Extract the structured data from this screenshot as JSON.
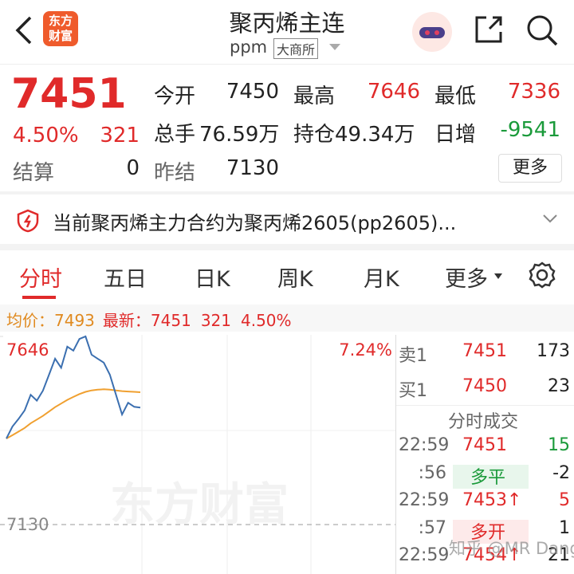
{
  "header": {
    "logo": [
      "东方",
      "财富"
    ],
    "title": "聚丙烯主连",
    "code": "ppm",
    "exchange": "大商所"
  },
  "quote": {
    "price": "7451",
    "change_pct": "4.50%",
    "change": "321",
    "fields": [
      {
        "label": "今开",
        "value": "7450"
      },
      {
        "label": "最高",
        "value": "7646"
      },
      {
        "label": "最低",
        "value": "7336"
      },
      {
        "label": "总手",
        "value": "76.59万"
      },
      {
        "label": "持仓",
        "value": "49.34万"
      },
      {
        "label": "日增",
        "value": "-9541"
      },
      {
        "label": "结算",
        "value": "0"
      },
      {
        "label": "昨结",
        "value": "7130"
      }
    ],
    "more_button": "更多"
  },
  "notice": {
    "text": "当前聚丙烯主力合约为聚丙烯2605(pp2605)..."
  },
  "tabs": [
    "分时",
    "五日",
    "日K",
    "周K",
    "月K",
    "更多"
  ],
  "info": {
    "avg_label": "均价：",
    "avg": "7493",
    "latest_label": "最新：",
    "latest": "7451",
    "change": "321",
    "change_pct": "4.50%"
  },
  "chart": {
    "type": "line",
    "ylim": [
      6614,
      7646
    ],
    "yticks": [
      7646,
      7130
    ],
    "pct_label": "7.24%",
    "series": [
      {
        "color": "#3b6fb0",
        "values": [
          7366,
          7399,
          7420,
          7443,
          7486,
          7470,
          7497,
          7541,
          7585,
          7560,
          7618,
          7607,
          7639,
          7646,
          7596,
          7585,
          7574,
          7541,
          7486,
          7432,
          7464,
          7453,
          7451
        ]
      },
      {
        "color": "#f0a030",
        "values": [
          7366,
          7375,
          7385,
          7395,
          7408,
          7418,
          7428,
          7440,
          7452,
          7462,
          7472,
          7480,
          7488,
          7494,
          7498,
          7500,
          7501,
          7500,
          7498,
          7496,
          7495,
          7494,
          7493
        ]
      }
    ]
  },
  "order_book": {
    "ask": {
      "label": "卖1",
      "price": "7451",
      "volume": "173"
    },
    "bid": {
      "label": "买1",
      "price": "7450",
      "volume": "23"
    },
    "trades_title": "分时成交",
    "trades": [
      {
        "time": "22:59",
        "price": "7451",
        "volume": "15"
      },
      {
        "time": ":56",
        "price": "多平",
        "volume": "-2"
      },
      {
        "time": "22:59",
        "price": "7453↑",
        "volume": "5"
      },
      {
        "time": ":57",
        "price": "多开",
        "volume": "1"
      },
      {
        "time": "22:59",
        "price": "7454↑",
        "volume": "21"
      }
    ]
  },
  "watermarks": [
    "东方财富",
    "知乎 @MR Dang"
  ]
}
